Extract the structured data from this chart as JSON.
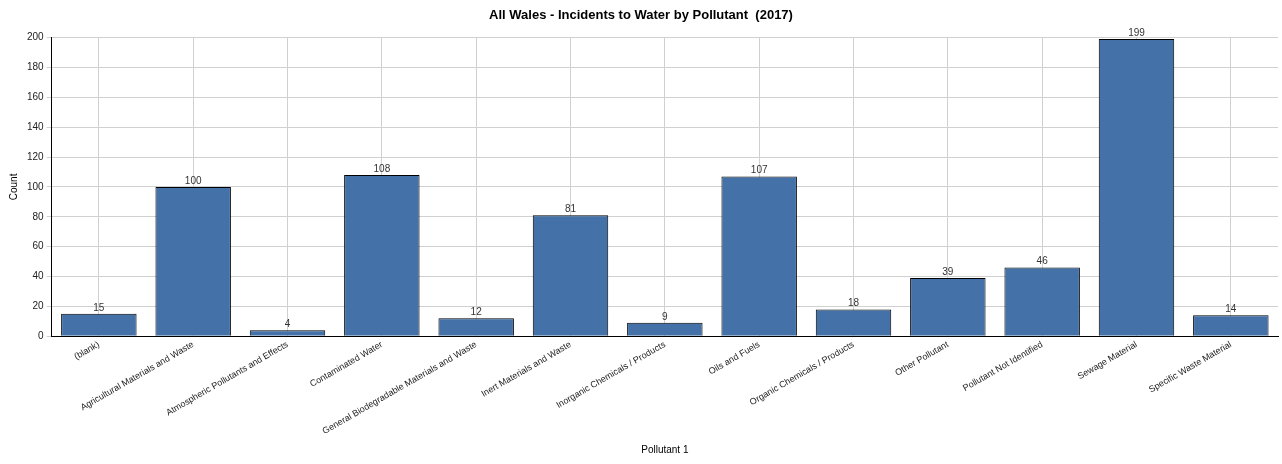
{
  "chart_data": {
    "type": "bar",
    "title": "All Wales - Incidents to Water by Pollutant  (2017)",
    "xlabel": "Pollutant 1",
    "ylabel": "Count",
    "categories": [
      "(blank)",
      "Agricultural Materials and Waste",
      "Atmospheric Pollutants and Effects",
      "Contaminated Water",
      "General Biodegradable Materials and Waste",
      "Inert Materials and Waste",
      "Inorganic Chemicals / Products",
      "Oils and Fuels",
      "Organic Chemicals / Products",
      "Other Pollutant",
      "Pollutant Not Identified",
      "Sewage Material",
      "Specific Waste Material"
    ],
    "values": [
      15,
      100,
      4,
      108,
      12,
      81,
      9,
      107,
      18,
      39,
      46,
      199,
      14
    ],
    "color": "#4472a8",
    "ylim": [
      0,
      200
    ],
    "yticks": [
      0,
      20,
      40,
      60,
      80,
      100,
      120,
      140,
      160,
      180,
      200
    ],
    "grid": true,
    "data_labels": true
  }
}
